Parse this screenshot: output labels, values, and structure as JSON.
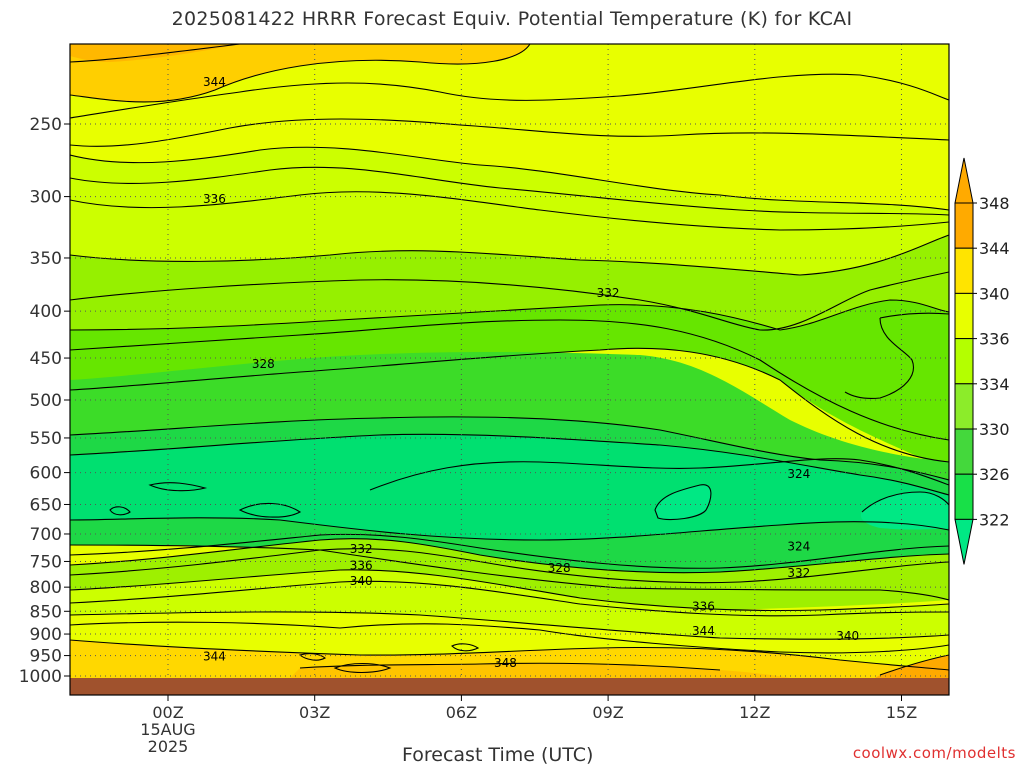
{
  "title": "2025081422 HRRR Forecast Equiv. Potential Temperature (K) for KCAI",
  "credit": "coolwx.com/modelts",
  "chart_data": {
    "type": "heatmap",
    "title": "2025081422 HRRR Forecast Equiv. Potential Temperature (K) for KCAI",
    "xlabel": "Forecast Time (UTC)",
    "ylabel": "",
    "xlim": [
      -2,
      16
    ],
    "y_axis_scale": "log-pressure",
    "y_ticks": [
      250,
      300,
      350,
      400,
      450,
      500,
      550,
      600,
      650,
      700,
      750,
      800,
      850,
      900,
      950,
      1000
    ],
    "x_ticks": [
      {
        "hour": 0,
        "label": "00Z",
        "sub": [
          "15AUG",
          "2025"
        ]
      },
      {
        "hour": 3,
        "label": "03Z",
        "sub": []
      },
      {
        "hour": 6,
        "label": "06Z",
        "sub": []
      },
      {
        "hour": 9,
        "label": "09Z",
        "sub": []
      },
      {
        "hour": 12,
        "label": "12Z",
        "sub": []
      },
      {
        "hour": 15,
        "label": "15Z",
        "sub": []
      }
    ],
    "grid": true,
    "colorbar": {
      "levels": [
        322,
        326,
        330,
        334,
        336,
        340,
        344,
        348
      ],
      "colors": [
        "#00e884",
        "#18e048",
        "#44d83c",
        "#8cec2a",
        "#b4ff00",
        "#e8ff00",
        "#ffe400",
        "#ffaa00"
      ]
    },
    "contour_labels": [
      {
        "value": "344",
        "hour": 0.95,
        "p": 225
      },
      {
        "value": "336",
        "hour": 0.95,
        "p": 302
      },
      {
        "value": "332",
        "hour": 9.0,
        "p": 382
      },
      {
        "value": "328",
        "hour": 1.95,
        "p": 457
      },
      {
        "value": "324",
        "hour": 12.9,
        "p": 602
      },
      {
        "value": "324",
        "hour": 12.9,
        "p": 722
      },
      {
        "value": "332",
        "hour": 3.95,
        "p": 727
      },
      {
        "value": "336",
        "hour": 3.95,
        "p": 758
      },
      {
        "value": "340",
        "hour": 3.95,
        "p": 788
      },
      {
        "value": "328",
        "hour": 8.0,
        "p": 762
      },
      {
        "value": "332",
        "hour": 12.9,
        "p": 772
      },
      {
        "value": "336",
        "hour": 10.95,
        "p": 840
      },
      {
        "value": "344",
        "hour": 10.95,
        "p": 893
      },
      {
        "value": "340",
        "hour": 13.9,
        "p": 904
      },
      {
        "value": "344",
        "hour": 0.95,
        "p": 952
      },
      {
        "value": "348",
        "hour": 6.9,
        "p": 968
      }
    ],
    "contour_levels": [
      322,
      324,
      326,
      328,
      330,
      332,
      334,
      336,
      338,
      340,
      342,
      344,
      346,
      348
    ]
  }
}
